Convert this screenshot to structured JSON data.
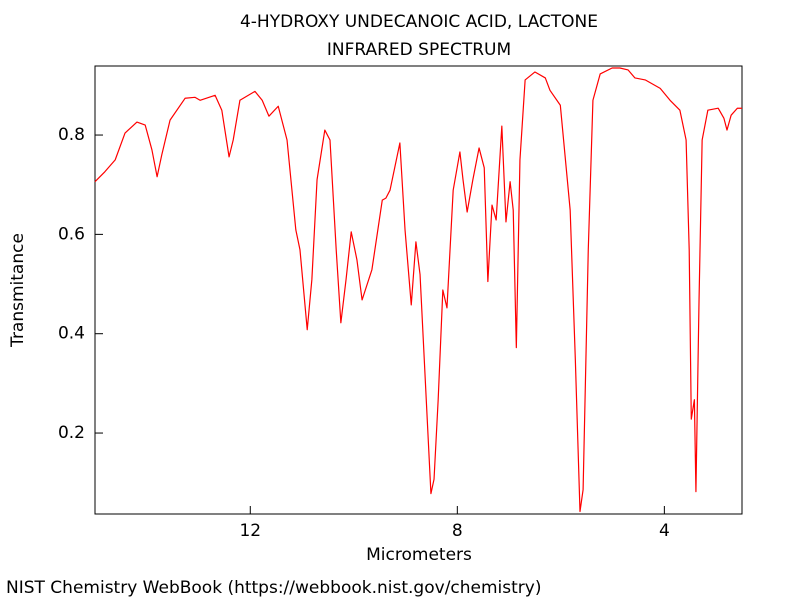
{
  "chart_data": {
    "type": "line",
    "title": "4-HYDROXY UNDECANOIC ACID, LACTONE",
    "subtitle": "INFRARED SPECTRUM",
    "x_label": "Micrometers",
    "y_label": "Transmitance",
    "source": "NIST Chemistry WebBook (https://webbook.nist.gov/chemistry)",
    "color": "#ff0000",
    "xlim": [
      15,
      2.5
    ],
    "ylim": [
      0.037,
      0.939
    ],
    "xticks": [
      12,
      8,
      4
    ],
    "yticks": [
      0.2,
      0.4,
      0.6,
      0.8
    ],
    "x": [
      15.0,
      14.81,
      14.61,
      14.42,
      14.19,
      14.03,
      13.9,
      13.8,
      13.71,
      13.55,
      13.26,
      13.07,
      12.97,
      12.68,
      12.55,
      12.41,
      12.33,
      12.2,
      11.91,
      11.77,
      11.64,
      11.46,
      11.29,
      11.12,
      11.04,
      10.9,
      10.81,
      10.71,
      10.56,
      10.46,
      10.34,
      10.25,
      10.15,
      10.05,
      9.94,
      9.84,
      9.65,
      9.45,
      9.38,
      9.3,
      9.11,
      9.01,
      8.89,
      8.8,
      8.72,
      8.6,
      8.51,
      8.45,
      8.37,
      8.28,
      8.2,
      8.08,
      7.95,
      7.89,
      7.81,
      7.7,
      7.58,
      7.48,
      7.41,
      7.33,
      7.25,
      7.14,
      7.06,
      6.98,
      6.92,
      6.86,
      6.79,
      6.69,
      6.5,
      6.3,
      6.21,
      6.01,
      5.82,
      5.72,
      5.63,
      5.57,
      5.47,
      5.38,
      5.24,
      5.01,
      4.86,
      4.7,
      4.57,
      4.37,
      4.08,
      3.89,
      3.7,
      3.58,
      3.52,
      3.48,
      3.42,
      3.39,
      3.33,
      3.27,
      3.16,
      2.96,
      2.85,
      2.79,
      2.71,
      2.59,
      2.5
    ],
    "values": [
      0.706,
      0.726,
      0.75,
      0.804,
      0.826,
      0.82,
      0.77,
      0.716,
      0.76,
      0.83,
      0.874,
      0.876,
      0.87,
      0.88,
      0.85,
      0.756,
      0.79,
      0.87,
      0.888,
      0.87,
      0.838,
      0.858,
      0.79,
      0.609,
      0.569,
      0.408,
      0.509,
      0.71,
      0.81,
      0.79,
      0.569,
      0.422,
      0.509,
      0.605,
      0.549,
      0.468,
      0.529,
      0.669,
      0.673,
      0.689,
      0.784,
      0.609,
      0.458,
      0.585,
      0.519,
      0.267,
      0.078,
      0.107,
      0.267,
      0.488,
      0.452,
      0.689,
      0.766,
      0.71,
      0.645,
      0.71,
      0.774,
      0.734,
      0.505,
      0.659,
      0.629,
      0.818,
      0.625,
      0.706,
      0.649,
      0.372,
      0.75,
      0.911,
      0.927,
      0.915,
      0.89,
      0.86,
      0.649,
      0.348,
      0.042,
      0.086,
      0.569,
      0.87,
      0.923,
      0.935,
      0.935,
      0.931,
      0.915,
      0.911,
      0.894,
      0.87,
      0.85,
      0.79,
      0.569,
      0.228,
      0.267,
      0.082,
      0.468,
      0.79,
      0.85,
      0.854,
      0.834,
      0.81,
      0.84,
      0.854,
      0.854
    ]
  }
}
